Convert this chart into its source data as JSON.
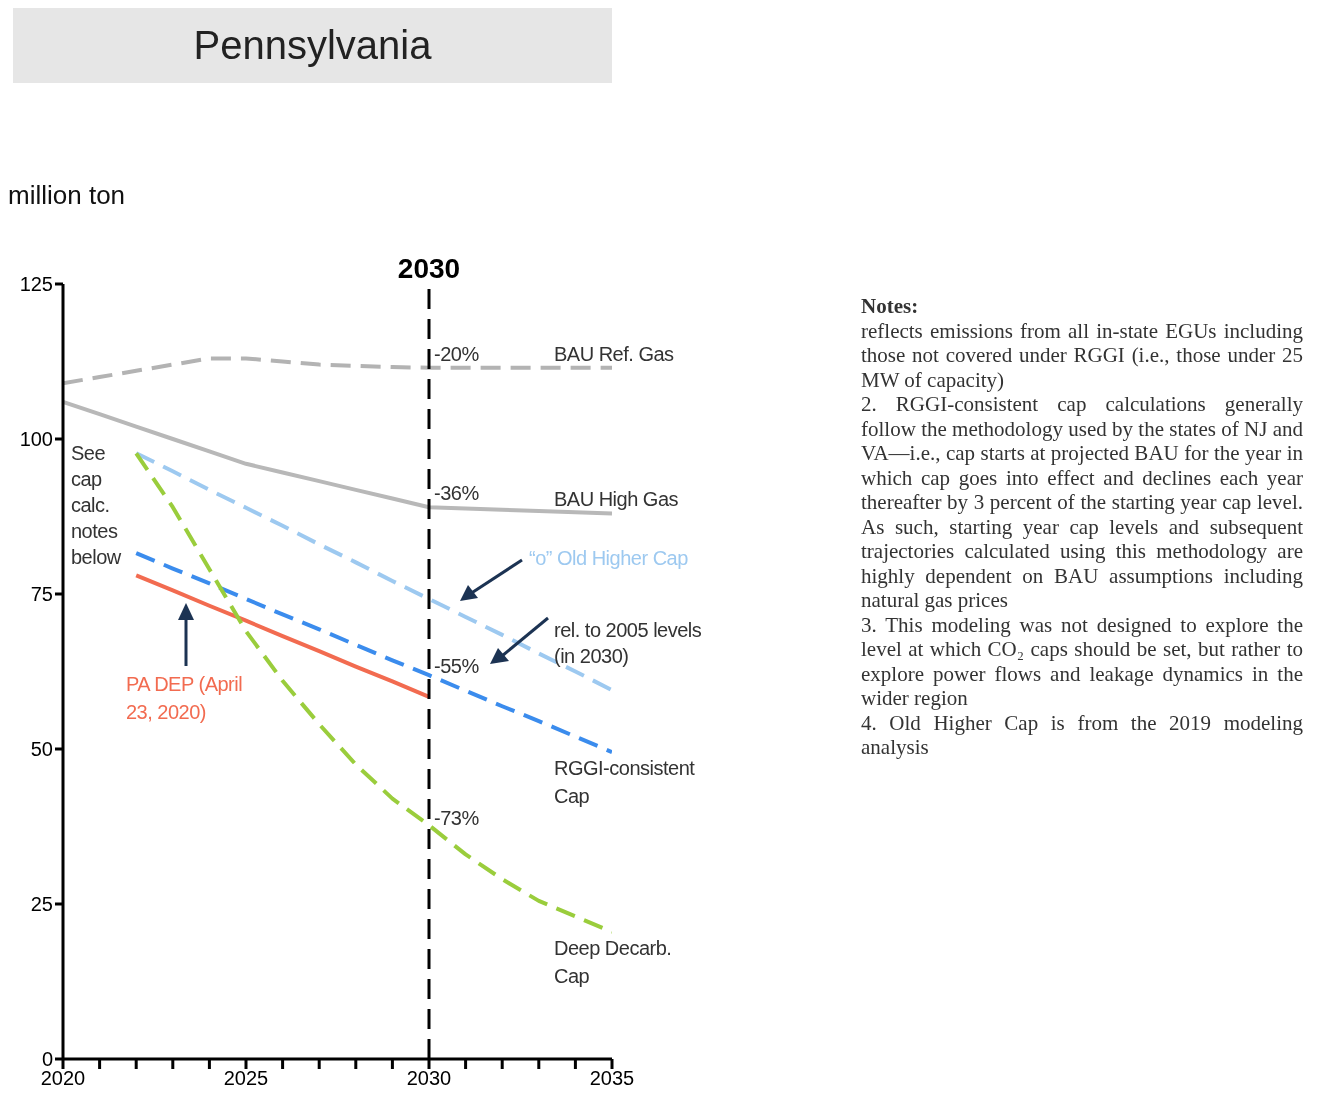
{
  "chart_data": {
    "type": "line",
    "title": "Pennsylvania",
    "ylabel": "million ton",
    "x": [
      2020,
      2021,
      2022,
      2023,
      2024,
      2025,
      2026,
      2027,
      2028,
      2029,
      2030,
      2031,
      2032,
      2033,
      2034,
      2035
    ],
    "series": [
      {
        "name": "BAU Ref. Gas",
        "color": "#b3b3b3",
        "line_style": "dashed",
        "values": [
          109,
          110,
          111,
          112,
          113,
          113,
          112.5,
          112,
          111.8,
          111.6,
          111.5,
          111.5,
          111.5,
          111.5,
          111.5,
          111.5
        ]
      },
      {
        "name": "BAU High Gas",
        "color": "#b8b8b8",
        "line_style": "solid",
        "values": [
          106,
          104,
          102,
          100,
          98,
          96,
          94.6,
          93.2,
          91.8,
          90.4,
          89,
          88.8,
          88.6,
          88.4,
          88.2,
          88
        ]
      },
      {
        "name": "“o” Old Higher Cap",
        "color": "#9dc9f0",
        "line_style": "dashed",
        "values": [
          null,
          null,
          97.7,
          94.8,
          91.8,
          88.9,
          86,
          83,
          80.1,
          77.1,
          74.2,
          71.3,
          68.4,
          65.4,
          62.5,
          59.5
        ]
      },
      {
        "name": "RGGI-consistent Cap",
        "color": "#3b8ced",
        "line_style": "dashed",
        "values": [
          null,
          null,
          81.6,
          79.1,
          76.7,
          74.2,
          71.7,
          69.3,
          66.8,
          64.3,
          61.9,
          59.4,
          56.9,
          54.5,
          52,
          49.5
        ]
      },
      {
        "name": "PA DEP (April 23, 2020)",
        "color": "#f26b50",
        "line_style": "solid",
        "values": [
          null,
          null,
          78,
          75.6,
          73.1,
          70.7,
          68.2,
          65.8,
          63.3,
          60.9,
          58.4,
          null,
          null,
          null,
          null,
          null
        ]
      },
      {
        "name": "Deep Decarb. Cap",
        "color": "#9acd3c",
        "line_style": "dashed",
        "values": [
          null,
          null,
          97.7,
          89,
          79,
          69,
          61,
          54,
          47.5,
          42,
          37.7,
          33,
          29,
          25.5,
          23,
          20.5
        ]
      }
    ],
    "xlim": [
      2020,
      2035
    ],
    "xticks": [
      2020,
      {
        "value": 2021,
        "label": null
      },
      {
        "value": 2022,
        "label": null
      },
      {
        "value": 2023,
        "label": null
      },
      {
        "value": 2024,
        "label": null
      },
      2025,
      {
        "value": 2026,
        "label": null
      },
      {
        "value": 2027,
        "label": null
      },
      {
        "value": 2028,
        "label": null
      },
      {
        "value": 2029,
        "label": null
      },
      2030,
      {
        "value": 2031,
        "label": null
      },
      {
        "value": 2032,
        "label": null
      },
      {
        "value": 2033,
        "label": null
      },
      {
        "value": 2034,
        "label": null
      },
      2035
    ],
    "ylim": [
      0,
      125
    ],
    "yticks": [
      0,
      25,
      50,
      75,
      100,
      125
    ],
    "marker": "none",
    "ref_lines": [
      {
        "axis": "x",
        "value": 2030,
        "label": "2030",
        "color": "#000000",
        "line_style": "dashed"
      }
    ],
    "annotations": [
      "-20%",
      "-36%",
      "-55%",
      "-73%",
      "See cap calc. notes below",
      "rel. to 2005 levels (in 2030)",
      "Notes:",
      "reflects emissions from all in-state EGUs including those not covered under RGGI (i.e., those under 25 MW of capacity)",
      "2. RGGI-consistent cap calculations generally follow the methodology used by the states of NJ and VA—i.e., cap starts at projected BAU for the year in which cap goes into effect and declines each year thereafter by 3 percent of the starting year cap level.  As such, starting year cap levels and subsequent trajectories calculated using this methodology are highly dependent on BAU assumptions including natural gas prices",
      "3. This modeling was not designed to explore the level at which CO₂ caps should be set, but rather to explore power flows and leakage dynamics in the wider region",
      "4. Old Higher Cap is from the 2019 modeling analysis"
    ]
  }
}
